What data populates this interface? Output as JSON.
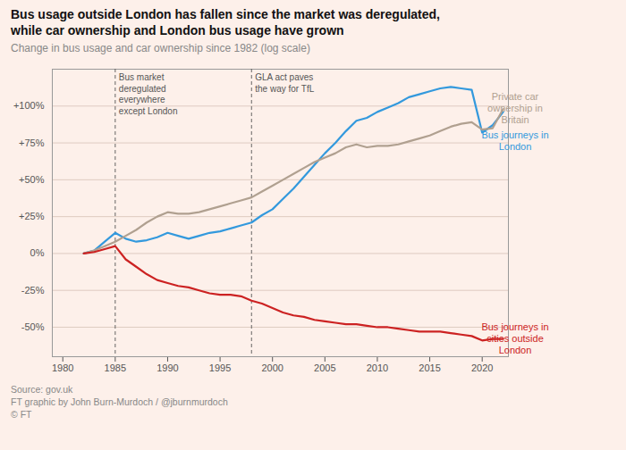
{
  "chart_data": {
    "type": "line",
    "title": "Bus usage outside London has fallen since the market was deregulated,\nwhile car ownership and London bus usage have grown",
    "subtitle": "Change in bus usage and car ownership since 1982 (log scale)",
    "source": "Source: gov.uk\nFT graphic by John Burn-Murdoch / @jburnmurdoch\n© FT",
    "x": [
      1982,
      1983,
      1984,
      1985,
      1986,
      1987,
      1988,
      1989,
      1990,
      1991,
      1992,
      1993,
      1994,
      1995,
      1996,
      1997,
      1998,
      1999,
      2000,
      2001,
      2002,
      2003,
      2004,
      2005,
      2006,
      2007,
      2008,
      2009,
      2010,
      2011,
      2012,
      2013,
      2014,
      2015,
      2016,
      2017,
      2018,
      2019,
      2020,
      2021,
      2022
    ],
    "series": [
      {
        "name": "Bus journeys in\nLondon",
        "color": "#3399dd",
        "values": [
          0,
          2,
          8,
          14,
          10,
          8,
          9,
          11,
          14,
          12,
          10,
          12,
          14,
          15,
          17,
          19,
          21,
          26,
          30,
          37,
          44,
          52,
          60,
          68,
          75,
          83,
          90,
          92,
          96,
          99,
          102,
          106,
          108,
          110,
          112,
          113,
          112,
          111,
          82,
          87,
          96
        ]
      },
      {
        "name": "Private car\nownership in\nBritain",
        "color": "#b0a090",
        "values": [
          0,
          2,
          5,
          8,
          12,
          16,
          21,
          25,
          28,
          27,
          27,
          28,
          30,
          32,
          34,
          36,
          38,
          42,
          46,
          50,
          54,
          58,
          62,
          65,
          68,
          72,
          74,
          72,
          73,
          73,
          74,
          76,
          78,
          80,
          83,
          86,
          88,
          89,
          84,
          85,
          98
        ]
      },
      {
        "name": "Bus journeys in\ncities outside\nLondon",
        "color": "#cc2222",
        "values": [
          0,
          1,
          3,
          5,
          -4,
          -9,
          -14,
          -18,
          -20,
          -22,
          -23,
          -25,
          -27,
          -28,
          -28,
          -29,
          -32,
          -34,
          -37,
          -40,
          -42,
          -43,
          -45,
          -46,
          -47,
          -48,
          -48,
          -49,
          -50,
          -50,
          -51,
          -52,
          -53,
          -53,
          -53,
          -54,
          -55,
          -56,
          -59,
          -58,
          -58
        ]
      }
    ],
    "annotations": [
      {
        "x": 1985,
        "label": "Bus market\nderegulated\neverywhere\nexcept London"
      },
      {
        "x": 1998,
        "label": "GLA act paves\nthe way for TfL"
      }
    ],
    "xlim": [
      1979,
      2022.5
    ],
    "xticks": [
      1980,
      1985,
      1990,
      1995,
      2000,
      2005,
      2010,
      2015,
      2020
    ],
    "ylim": [
      -70,
      125
    ],
    "yticks": [
      {
        "value": -50,
        "label": "-50%"
      },
      {
        "value": -25,
        "label": "-25%"
      },
      {
        "value": 0,
        "label": "0%"
      },
      {
        "value": 25,
        "label": "+25%"
      },
      {
        "value": 50,
        "label": "+50%"
      },
      {
        "value": 75,
        "label": "+75%"
      },
      {
        "value": 100,
        "label": "+100%"
      }
    ],
    "grid": true
  }
}
